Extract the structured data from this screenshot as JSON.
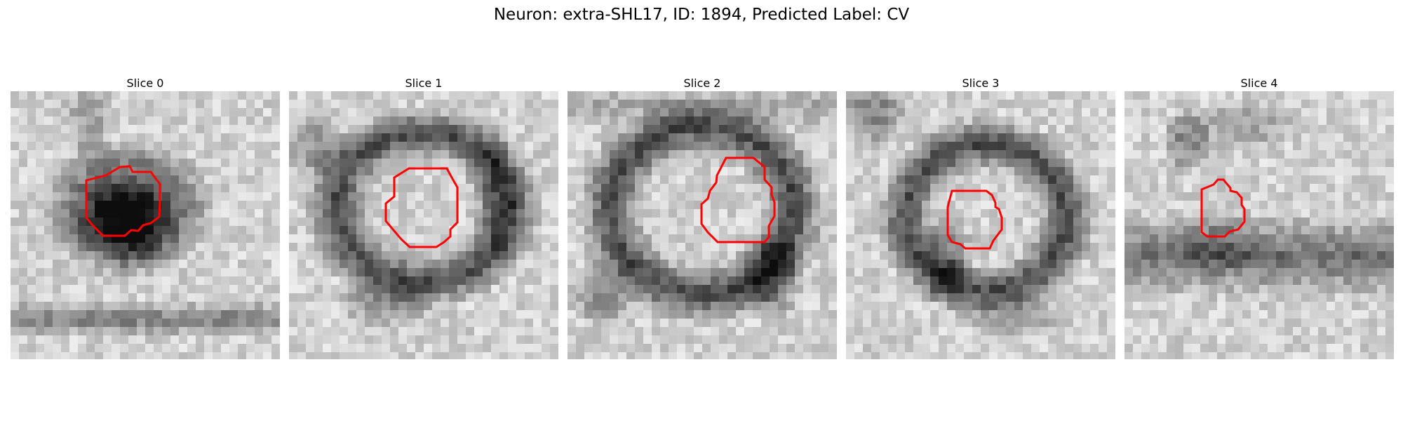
{
  "title": "Neuron: extra-SHL17, ID: 1894, Predicted Label: CV",
  "contour_color": "#ff0000",
  "panels": [
    {
      "label": "Slice 0"
    },
    {
      "label": "Slice 1"
    },
    {
      "label": "Slice 2"
    },
    {
      "label": "Slice 3"
    },
    {
      "label": "Slice 4"
    }
  ]
}
